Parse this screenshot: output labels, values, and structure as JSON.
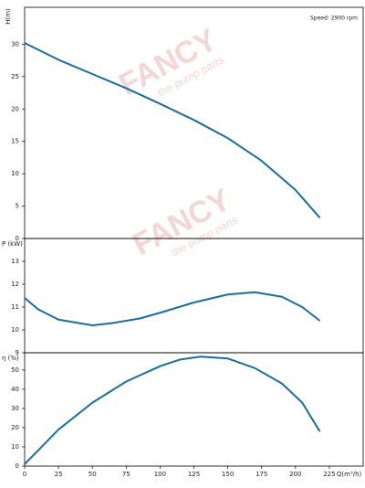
{
  "watermark": {
    "title": "FANCY",
    "subtitle": "the pump parts"
  },
  "chart_data": [
    {
      "type": "line",
      "ylabel": "H(m)",
      "annotation": "Speed: 2900 rpm",
      "xlim": [
        0,
        250
      ],
      "ylim": [
        0,
        35.7
      ],
      "yticks": [
        0,
        5,
        10,
        15,
        20,
        25,
        30
      ],
      "x": [
        0,
        25,
        50,
        75,
        100,
        125,
        150,
        175,
        200,
        218
      ],
      "series": [
        {
          "color": "#1a6e9c",
          "values": [
            30.2,
            27.6,
            25.4,
            23.2,
            20.8,
            18.3,
            15.5,
            12.0,
            7.5,
            3.2
          ]
        }
      ]
    },
    {
      "type": "line",
      "ylabel": "P (kW)",
      "xlim": [
        0,
        250
      ],
      "ylim": [
        9,
        14
      ],
      "yticks": [
        9,
        10,
        11,
        12,
        13
      ],
      "x": [
        0,
        10,
        25,
        50,
        65,
        85,
        100,
        125,
        150,
        170,
        190,
        205,
        218
      ],
      "series": [
        {
          "color": "#1a6e9c",
          "values": [
            11.4,
            10.9,
            10.45,
            10.2,
            10.3,
            10.5,
            10.75,
            11.2,
            11.55,
            11.65,
            11.45,
            11.0,
            10.4
          ]
        }
      ]
    },
    {
      "type": "line",
      "ylabel": "η (%)",
      "xlabel": "Q(m³/h)",
      "xlim": [
        0,
        250
      ],
      "ylim": [
        0,
        59
      ],
      "yticks": [
        0,
        10,
        20,
        30,
        40,
        50
      ],
      "xticks": [
        0,
        25,
        50,
        75,
        100,
        125,
        150,
        175,
        200,
        225
      ],
      "x": [
        0,
        25,
        50,
        75,
        100,
        115,
        130,
        150,
        170,
        190,
        205,
        218
      ],
      "series": [
        {
          "color": "#1a6e9c",
          "values": [
            1,
            19,
            33,
            44,
            52,
            55.5,
            57,
            56,
            51,
            43,
            33,
            18
          ]
        }
      ]
    }
  ]
}
